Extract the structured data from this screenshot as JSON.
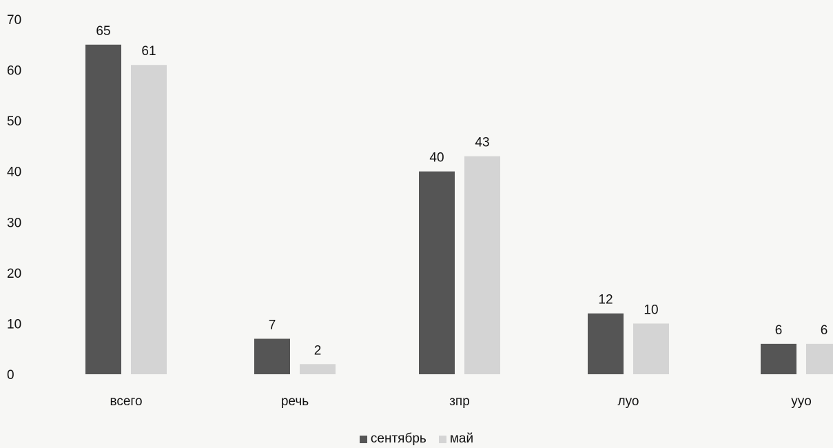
{
  "chart_data": {
    "type": "bar",
    "categories": [
      "всего",
      "речь",
      "зпр",
      "луо",
      "уyo"
    ],
    "series": [
      {
        "name": "сентябрь",
        "values": [
          65,
          7,
          40,
          12,
          6
        ],
        "color": "#555555"
      },
      {
        "name": "май",
        "values": [
          61,
          2,
          43,
          10,
          6
        ],
        "color": "#d4d4d4"
      }
    ],
    "y_ticks": [
      "0",
      "10",
      "20",
      "30",
      "40",
      "50",
      "60",
      "70"
    ],
    "ylim": [
      0,
      70
    ],
    "grid": false,
    "legend_position": "bottom-center"
  }
}
